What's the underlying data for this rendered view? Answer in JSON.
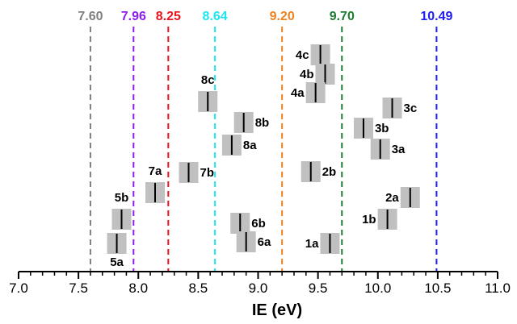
{
  "chart_data": {
    "type": "scatter",
    "title": "",
    "xlabel": "IE (eV)",
    "ylabel": "",
    "xlim": [
      7.0,
      11.0
    ],
    "x_ticks": [
      "7.0",
      "7.5",
      "8.0",
      "8.5",
      "9.0",
      "9.5",
      "10.0",
      "10.5",
      "11.0"
    ],
    "grid": false,
    "reference_lines": [
      {
        "value": 7.6,
        "label": "7.60",
        "color": "#808080"
      },
      {
        "value": 7.96,
        "label": "7.96",
        "color": "#8b1ef0"
      },
      {
        "value": 8.25,
        "label": "8.25",
        "color": "#e8141e"
      },
      {
        "value": 8.64,
        "label": "8.64",
        "color": "#1ee6f0"
      },
      {
        "value": 9.2,
        "label": "9.20",
        "color": "#f0821e"
      },
      {
        "value": 9.7,
        "label": "9.70",
        "color": "#1e7d32"
      },
      {
        "value": 10.49,
        "label": "10.49",
        "color": "#1e1ef0"
      }
    ],
    "points": [
      {
        "label": "5a",
        "ie": 7.82,
        "label_pos": "below"
      },
      {
        "label": "5b",
        "ie": 7.86,
        "label_pos": "above"
      },
      {
        "label": "7a",
        "ie": 8.14,
        "label_pos": "above"
      },
      {
        "label": "7b",
        "ie": 8.42,
        "label_pos": "right"
      },
      {
        "label": "8c",
        "ie": 8.58,
        "label_pos": "above"
      },
      {
        "label": "8a",
        "ie": 8.78,
        "label_pos": "right"
      },
      {
        "label": "8b",
        "ie": 8.88,
        "label_pos": "right"
      },
      {
        "label": "6b",
        "ie": 8.85,
        "label_pos": "right"
      },
      {
        "label": "6a",
        "ie": 8.9,
        "label_pos": "right"
      },
      {
        "label": "4c",
        "ie": 9.52,
        "label_pos": "left"
      },
      {
        "label": "4b",
        "ie": 9.56,
        "label_pos": "left"
      },
      {
        "label": "4a",
        "ie": 9.48,
        "label_pos": "left"
      },
      {
        "label": "2b",
        "ie": 9.44,
        "label_pos": "right"
      },
      {
        "label": "1a",
        "ie": 9.6,
        "label_pos": "left"
      },
      {
        "label": "3c",
        "ie": 10.12,
        "label_pos": "right"
      },
      {
        "label": "3b",
        "ie": 9.88,
        "label_pos": "right"
      },
      {
        "label": "3a",
        "ie": 10.02,
        "label_pos": "right"
      },
      {
        "label": "2a",
        "ie": 10.27,
        "label_pos": "left"
      },
      {
        "label": "1b",
        "ie": 10.08,
        "label_pos": "left"
      }
    ],
    "colors": {
      "box": "#c0c0c0",
      "marker": "#000000",
      "axis": "#000000"
    }
  }
}
